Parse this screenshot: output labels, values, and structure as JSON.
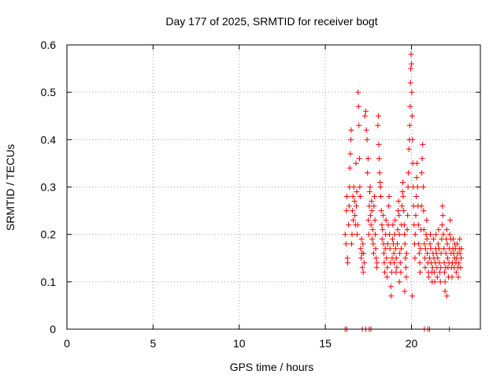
{
  "chart_data": {
    "type": "scatter",
    "title": "Day 177 of 2025, SRMTID for receiver bogt",
    "xlabel": "GPS time / hours",
    "ylabel": "SRMTID / TECUs",
    "xlim": [
      0,
      24
    ],
    "ylim": [
      0,
      0.6
    ],
    "x_ticks": [
      0,
      5,
      10,
      15,
      20
    ],
    "x_tick_labels": [
      "0",
      "5",
      "10",
      "15",
      "20"
    ],
    "y_ticks": [
      0,
      0.1,
      0.2,
      0.3,
      0.4,
      0.5,
      0.6
    ],
    "y_tick_labels": [
      "0",
      "0.1",
      "0.2",
      "0.3",
      "0.4",
      "0.5",
      "0.6"
    ],
    "grid": true,
    "marker": "+",
    "series": [
      {
        "name": "SRMTID",
        "color": "#ff0000",
        "points": [
          [
            16.15,
            0
          ],
          [
            16.25,
            0
          ],
          [
            17.15,
            0
          ],
          [
            17.35,
            0
          ],
          [
            17.55,
            0
          ],
          [
            17.65,
            0
          ],
          [
            20.75,
            0
          ],
          [
            20.95,
            0
          ],
          [
            21.05,
            0
          ],
          [
            22.2,
            0
          ],
          [
            16.15,
            0.2
          ],
          [
            16.2,
            0.18
          ],
          [
            16.22,
            0.25
          ],
          [
            16.25,
            0.28
          ],
          [
            16.28,
            0.15
          ],
          [
            16.3,
            0.14
          ],
          [
            16.35,
            0.22
          ],
          [
            16.38,
            0.26
          ],
          [
            16.4,
            0.3
          ],
          [
            16.42,
            0.34
          ],
          [
            16.45,
            0.37
          ],
          [
            16.48,
            0.4
          ],
          [
            16.5,
            0.42
          ],
          [
            16.52,
            0.18
          ],
          [
            16.55,
            0.2
          ],
          [
            16.58,
            0.25
          ],
          [
            16.6,
            0.28
          ],
          [
            16.62,
            0.23
          ],
          [
            16.65,
            0.3
          ],
          [
            16.7,
            0.27
          ],
          [
            16.72,
            0.24
          ],
          [
            16.75,
            0.22
          ],
          [
            16.78,
            0.35
          ],
          [
            16.8,
            0.26
          ],
          [
            16.82,
            0.29
          ],
          [
            16.85,
            0.2
          ],
          [
            16.88,
            0.22
          ],
          [
            16.9,
            0.5
          ],
          [
            16.92,
            0.47
          ],
          [
            16.95,
            0.43
          ],
          [
            16.98,
            0.36
          ],
          [
            17.0,
            0.3
          ],
          [
            17.02,
            0.28
          ],
          [
            17.05,
            0.17
          ],
          [
            17.08,
            0.15
          ],
          [
            17.1,
            0.19
          ],
          [
            17.12,
            0.16
          ],
          [
            17.15,
            0.13
          ],
          [
            17.18,
            0.18
          ],
          [
            17.2,
            0.12
          ],
          [
            17.22,
            0.16
          ],
          [
            17.25,
            0.14
          ],
          [
            17.3,
            0.45
          ],
          [
            17.35,
            0.46
          ],
          [
            17.38,
            0.42
          ],
          [
            17.42,
            0.4
          ],
          [
            17.45,
            0.33
          ],
          [
            17.48,
            0.36
          ],
          [
            17.5,
            0.23
          ],
          [
            17.52,
            0.2
          ],
          [
            17.55,
            0.26
          ],
          [
            17.58,
            0.29
          ],
          [
            17.6,
            0.3
          ],
          [
            17.62,
            0.24
          ],
          [
            17.65,
            0.22
          ],
          [
            17.68,
            0.27
          ],
          [
            17.7,
            0.25
          ],
          [
            17.72,
            0.19
          ],
          [
            17.75,
            0.21
          ],
          [
            17.78,
            0.18
          ],
          [
            17.8,
            0.16
          ],
          [
            17.82,
            0.26
          ],
          [
            17.85,
            0.28
          ],
          [
            17.88,
            0.23
          ],
          [
            17.9,
            0.2
          ],
          [
            17.92,
            0.17
          ],
          [
            17.95,
            0.15
          ],
          [
            17.98,
            0.13
          ],
          [
            18.0,
            0.14
          ],
          [
            18.05,
            0.43
          ],
          [
            18.08,
            0.45
          ],
          [
            18.1,
            0.39
          ],
          [
            18.12,
            0.36
          ],
          [
            18.15,
            0.33
          ],
          [
            18.18,
            0.31
          ],
          [
            18.2,
            0.3
          ],
          [
            18.22,
            0.28
          ],
          [
            18.25,
            0.25
          ],
          [
            18.28,
            0.22
          ],
          [
            18.3,
            0.19
          ],
          [
            18.32,
            0.21
          ],
          [
            18.35,
            0.24
          ],
          [
            18.38,
            0.18
          ],
          [
            18.4,
            0.16
          ],
          [
            18.42,
            0.14
          ],
          [
            18.45,
            0.12
          ],
          [
            18.48,
            0.17
          ],
          [
            18.5,
            0.2
          ],
          [
            18.52,
            0.23
          ],
          [
            18.55,
            0.15
          ],
          [
            18.58,
            0.11
          ],
          [
            18.6,
            0.13
          ],
          [
            18.62,
            0.18
          ],
          [
            18.65,
            0.22
          ],
          [
            18.68,
            0.26
          ],
          [
            18.7,
            0.28
          ],
          [
            18.72,
            0.2
          ],
          [
            18.75,
            0.17
          ],
          [
            18.78,
            0.14
          ],
          [
            18.8,
            0.09
          ],
          [
            18.82,
            0.07
          ],
          [
            18.85,
            0.12
          ],
          [
            18.88,
            0.15
          ],
          [
            18.9,
            0.19
          ],
          [
            18.92,
            0.22
          ],
          [
            18.95,
            0.18
          ],
          [
            18.98,
            0.16
          ],
          [
            19.0,
            0.14
          ],
          [
            19.02,
            0.2
          ],
          [
            19.05,
            0.23
          ],
          [
            19.08,
            0.17
          ],
          [
            19.1,
            0.12
          ],
          [
            19.12,
            0.15
          ],
          [
            19.15,
            0.13
          ],
          [
            19.18,
            0.18
          ],
          [
            19.2,
            0.21
          ],
          [
            19.22,
            0.25
          ],
          [
            19.25,
            0.27
          ],
          [
            19.28,
            0.24
          ],
          [
            19.3,
            0.2
          ],
          [
            19.32,
            0.16
          ],
          [
            19.35,
            0.14
          ],
          [
            19.38,
            0.12
          ],
          [
            19.4,
            0.17
          ],
          [
            19.42,
            0.22
          ],
          [
            19.45,
            0.26
          ],
          [
            19.48,
            0.29
          ],
          [
            19.5,
            0.31
          ],
          [
            19.52,
            0.28
          ],
          [
            19.55,
            0.25
          ],
          [
            19.58,
            0.22
          ],
          [
            19.6,
            0.2
          ],
          [
            19.62,
            0.18
          ],
          [
            19.65,
            0.15
          ],
          [
            19.68,
            0.13
          ],
          [
            19.7,
            0.11
          ],
          [
            19.72,
            0.16
          ],
          [
            19.75,
            0.21
          ],
          [
            19.78,
            0.24
          ],
          [
            19.8,
            0.3
          ],
          [
            19.82,
            0.33
          ],
          [
            19.85,
            0.38
          ],
          [
            19.88,
            0.4
          ],
          [
            19.9,
            0.43
          ],
          [
            19.92,
            0.47
          ],
          [
            19.94,
            0.52
          ],
          [
            19.96,
            0.55
          ],
          [
            19.98,
            0.58
          ],
          [
            20.0,
            0.56
          ],
          [
            20.02,
            0.5
          ],
          [
            20.04,
            0.45
          ],
          [
            20.06,
            0.4
          ],
          [
            20.08,
            0.35
          ],
          [
            20.1,
            0.3
          ],
          [
            20.12,
            0.26
          ],
          [
            20.15,
            0.22
          ],
          [
            20.18,
            0.18
          ],
          [
            20.2,
            0.15
          ],
          [
            20.22,
            0.2
          ],
          [
            20.25,
            0.24
          ],
          [
            20.28,
            0.28
          ],
          [
            20.3,
            0.32
          ],
          [
            20.32,
            0.35
          ],
          [
            20.35,
            0.3
          ],
          [
            20.38,
            0.26
          ],
          [
            20.4,
            0.22
          ],
          [
            20.42,
            0.18
          ],
          [
            20.45,
            0.16
          ],
          [
            20.48,
            0.14
          ],
          [
            20.5,
            0.12
          ],
          [
            20.52,
            0.17
          ],
          [
            20.55,
            0.21
          ],
          [
            20.58,
            0.26
          ],
          [
            20.6,
            0.33
          ],
          [
            20.62,
            0.36
          ],
          [
            20.65,
            0.39
          ],
          [
            20.68,
            0.3
          ],
          [
            20.7,
            0.25
          ],
          [
            20.72,
            0.21
          ],
          [
            20.75,
            0.18
          ],
          [
            20.78,
            0.15
          ],
          [
            20.8,
            0.13
          ],
          [
            20.82,
            0.17
          ],
          [
            20.85,
            0.2
          ],
          [
            20.88,
            0.23
          ],
          [
            20.9,
            0.19
          ],
          [
            20.92,
            0.16
          ],
          [
            20.95,
            0.14
          ],
          [
            20.98,
            0.12
          ],
          [
            20.05,
            0.07
          ],
          [
            19.3,
            0.1
          ],
          [
            19.6,
            0.08
          ],
          [
            21.0,
            0.11
          ],
          [
            21.05,
            0.15
          ],
          [
            21.08,
            0.18
          ],
          [
            21.1,
            0.2
          ],
          [
            21.12,
            0.17
          ],
          [
            21.15,
            0.14
          ],
          [
            21.18,
            0.12
          ],
          [
            21.2,
            0.1
          ],
          [
            21.22,
            0.13
          ],
          [
            21.25,
            0.16
          ],
          [
            21.28,
            0.19
          ],
          [
            21.3,
            0.15
          ],
          [
            21.32,
            0.12
          ],
          [
            21.35,
            0.1
          ],
          [
            21.38,
            0.14
          ],
          [
            21.4,
            0.17
          ],
          [
            21.42,
            0.2
          ],
          [
            21.45,
            0.16
          ],
          [
            21.48,
            0.13
          ],
          [
            21.5,
            0.11
          ],
          [
            21.52,
            0.15
          ],
          [
            21.55,
            0.18
          ],
          [
            21.58,
            0.21
          ],
          [
            21.6,
            0.17
          ],
          [
            21.62,
            0.14
          ],
          [
            21.65,
            0.12
          ],
          [
            21.68,
            0.1
          ],
          [
            21.7,
            0.13
          ],
          [
            21.72,
            0.16
          ],
          [
            21.75,
            0.19
          ],
          [
            21.78,
            0.22
          ],
          [
            21.8,
            0.26
          ],
          [
            21.82,
            0.24
          ],
          [
            21.85,
            0.2
          ],
          [
            21.88,
            0.17
          ],
          [
            21.9,
            0.14
          ],
          [
            21.92,
            0.12
          ],
          [
            21.95,
            0.1
          ],
          [
            21.98,
            0.13
          ],
          [
            22.0,
            0.16
          ],
          [
            22.02,
            0.19
          ],
          [
            22.05,
            0.21
          ],
          [
            22.08,
            0.18
          ],
          [
            22.1,
            0.15
          ],
          [
            22.12,
            0.13
          ],
          [
            22.15,
            0.11
          ],
          [
            22.18,
            0.14
          ],
          [
            22.2,
            0.17
          ],
          [
            22.22,
            0.2
          ],
          [
            22.25,
            0.23
          ],
          [
            22.28,
            0.19
          ],
          [
            22.3,
            0.16
          ],
          [
            22.32,
            0.13
          ],
          [
            22.35,
            0.11
          ],
          [
            22.38,
            0.14
          ],
          [
            22.4,
            0.17
          ],
          [
            22.42,
            0.19
          ],
          [
            22.45,
            0.16
          ],
          [
            22.48,
            0.13
          ],
          [
            22.5,
            0.15
          ],
          [
            22.52,
            0.18
          ],
          [
            22.55,
            0.17
          ],
          [
            22.58,
            0.14
          ],
          [
            22.6,
            0.12
          ],
          [
            22.62,
            0.15
          ],
          [
            22.65,
            0.18
          ],
          [
            22.68,
            0.16
          ],
          [
            22.7,
            0.13
          ],
          [
            22.72,
            0.11
          ],
          [
            22.75,
            0.14
          ],
          [
            22.78,
            0.17
          ],
          [
            22.8,
            0.19
          ],
          [
            22.82,
            0.16
          ],
          [
            22.85,
            0.13
          ],
          [
            22.88,
            0.15
          ],
          [
            22.9,
            0.17
          ],
          [
            21.95,
            0.08
          ],
          [
            22.05,
            0.07
          ]
        ]
      }
    ]
  }
}
